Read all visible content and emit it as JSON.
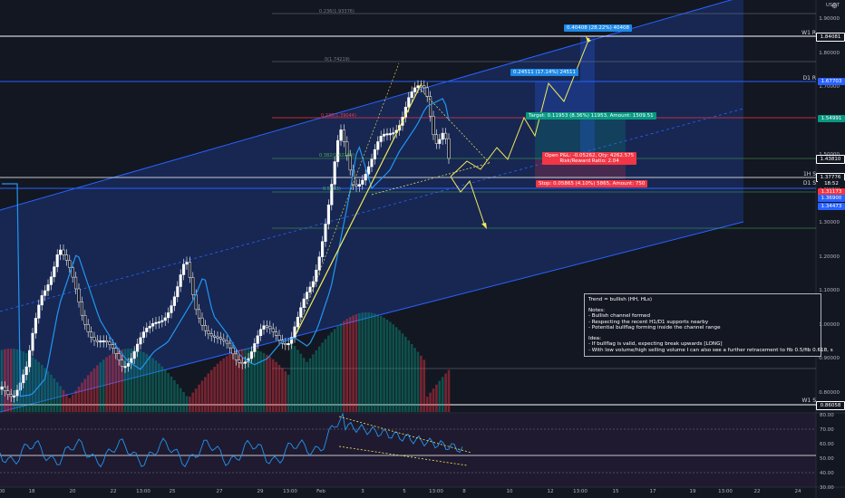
{
  "price_axis": {
    "currency": "USDT",
    "ticks": [
      "1.90000",
      "1.80000",
      "1.70000",
      "1.60000",
      "1.50000",
      "1.40000",
      "1.30000",
      "1.20000",
      "1.10000",
      "1.00000",
      "0.90000",
      "0.80000"
    ],
    "tags": [
      {
        "text": "1.84081",
        "color": "#131722",
        "border": "#ffffff"
      },
      {
        "text": "1.67703",
        "color": "#2962ff"
      },
      {
        "text": "1.54991",
        "color": "#089981"
      },
      {
        "text": "1.43810",
        "color": "#131722",
        "border": "#ffffff"
      },
      {
        "text": "1.37776",
        "color": "#131722",
        "border": "#ffffff"
      },
      {
        "text": "18:52",
        "color": "#131722"
      },
      {
        "text": "1.31173",
        "color": "#f23645"
      },
      {
        "text": "1.36900",
        "color": "#2962ff"
      },
      {
        "text": "1.34473",
        "color": "#2962ff"
      },
      {
        "text": "0.86058",
        "color": "#131722",
        "border": "#ffffff"
      }
    ],
    "rsi_ticks": [
      "80.00",
      "70.00",
      "60.00",
      "50.00",
      "40.00",
      "30.00"
    ]
  },
  "time_axis": {
    "ticks": [
      "00",
      "18",
      "20",
      "22",
      "13:00",
      "25",
      "27",
      "29",
      "13:00",
      "Feb",
      "3",
      "5",
      "13:00",
      "8",
      "10",
      "12",
      "13:00",
      "15",
      "17",
      "19",
      "13:00",
      "22",
      "24"
    ]
  },
  "levels": {
    "w1_r": "W1 R",
    "d1_r": "D1 R",
    "h1_s": "1H S",
    "d1_s": "D1 S",
    "w1_s": "W1 S"
  },
  "fib_labels": {
    "f0236": "0.236(1.93376)",
    "f0": "0(1.74219)",
    "f0236b": "0.236(1.39044)",
    "f0382": "0.382(1.42288)",
    "f05": "0.5(1.3)",
    "f1": "1(0.8...)"
  },
  "trade_boxes": {
    "target_top": "0.40408 (28.22%) 40408",
    "target_mid": "0.24511 (17.14%) 24511",
    "target": "Target: 0.11953 (8.36%) 11953, Amount: 1509.51",
    "open_pl": "Open P&L: -0.05262, Qty: 4262.575",
    "rr": "Risk/Reward Ratio: 2.04",
    "stop": "Stop: 0.05865 (4.10%) 5865, Amount: 750"
  },
  "notes": {
    "trend": "Trend = bullish (HH, HLs)",
    "notes_title": "Notes:",
    "n1": "- Bullish channel formed",
    "n2": "- Respecting the recent H1/D1 supports nearby",
    "n3": "- Potential bullflag forming inside the channel range",
    "idea_title": "Idea:",
    "i1": "- If bullflag is valid, expecting break upwards [LONG]",
    "i2": "- With low volume/high selling volume I can also see a further retracement to fib 0.5/fib 0.618, s"
  },
  "colors": {
    "background": "#131722",
    "channel": "#2962ff",
    "bull": "#ffffff",
    "bear": "#ffffff",
    "ma": "#2196f3",
    "projection": "#f5eb5a",
    "rsi_bg": "#2a1d3d",
    "target_green": "#089981",
    "stop_red": "#f23645",
    "label_blue": "#1e88e5"
  }
}
